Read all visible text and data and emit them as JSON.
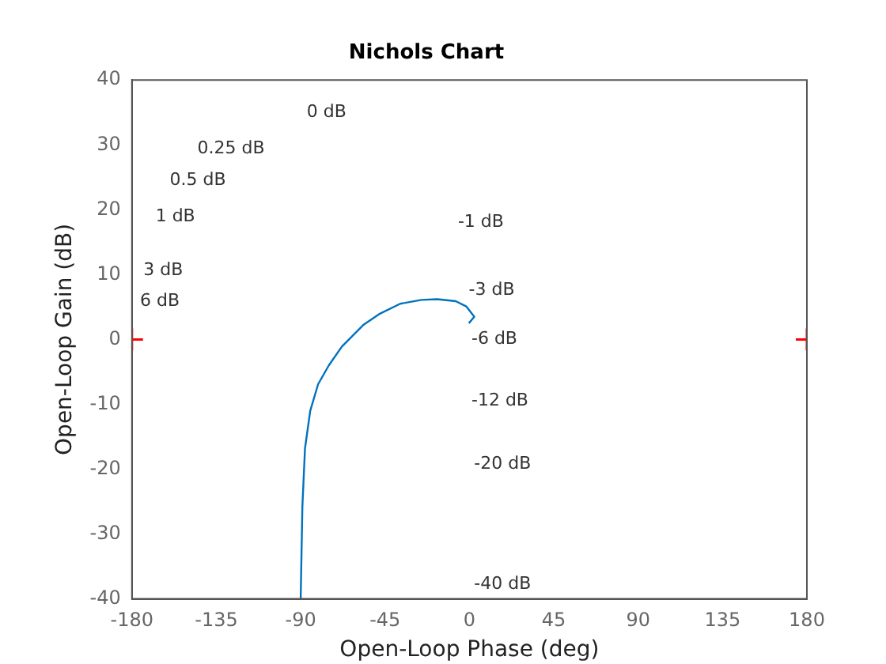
{
  "chart_data": {
    "type": "line",
    "title": "Nichols Chart",
    "xlabel": "Open-Loop Phase (deg)",
    "ylabel": "Open-Loop Gain (dB)",
    "x": [
      -90,
      -89.1,
      -87.7,
      -84.9,
      -80.7,
      -75,
      -68,
      -56.7,
      -48.2,
      -36.9,
      -25.6,
      -17.2,
      -7.3,
      -1.7,
      2.6,
      -0.3
    ],
    "series": [
      {
        "color": "#0072bd",
        "values": [
          -40,
          -25.8,
          -16.8,
          -11,
          -6.9,
          -4,
          -1.1,
          2.2,
          3.9,
          5.5,
          6.1,
          6.2,
          5.9,
          5.1,
          3.5,
          2.5
        ],
        "marker": "none"
      },
      {
        "type": "scatter",
        "color": "#ff0000",
        "x": [
          -180,
          180
        ],
        "values": [
          0,
          0
        ],
        "marker": "cross"
      }
    ],
    "xlim": [
      -180,
      180
    ],
    "xticks": [
      -180,
      -135,
      -90,
      -45,
      0,
      45,
      90,
      135,
      180
    ],
    "ylim": [
      -40,
      40
    ],
    "yticks": [
      -40,
      -30,
      -20,
      -10,
      0,
      10,
      20,
      30,
      40
    ],
    "legend": false,
    "annotations": [
      "0 dB",
      "0.25 dB",
      "0.5 dB",
      "1 dB",
      "3 dB",
      "6 dB",
      "-1 dB",
      "-3 dB",
      "-6 dB",
      "-12 dB",
      "-20 dB",
      "-40 dB"
    ]
  }
}
